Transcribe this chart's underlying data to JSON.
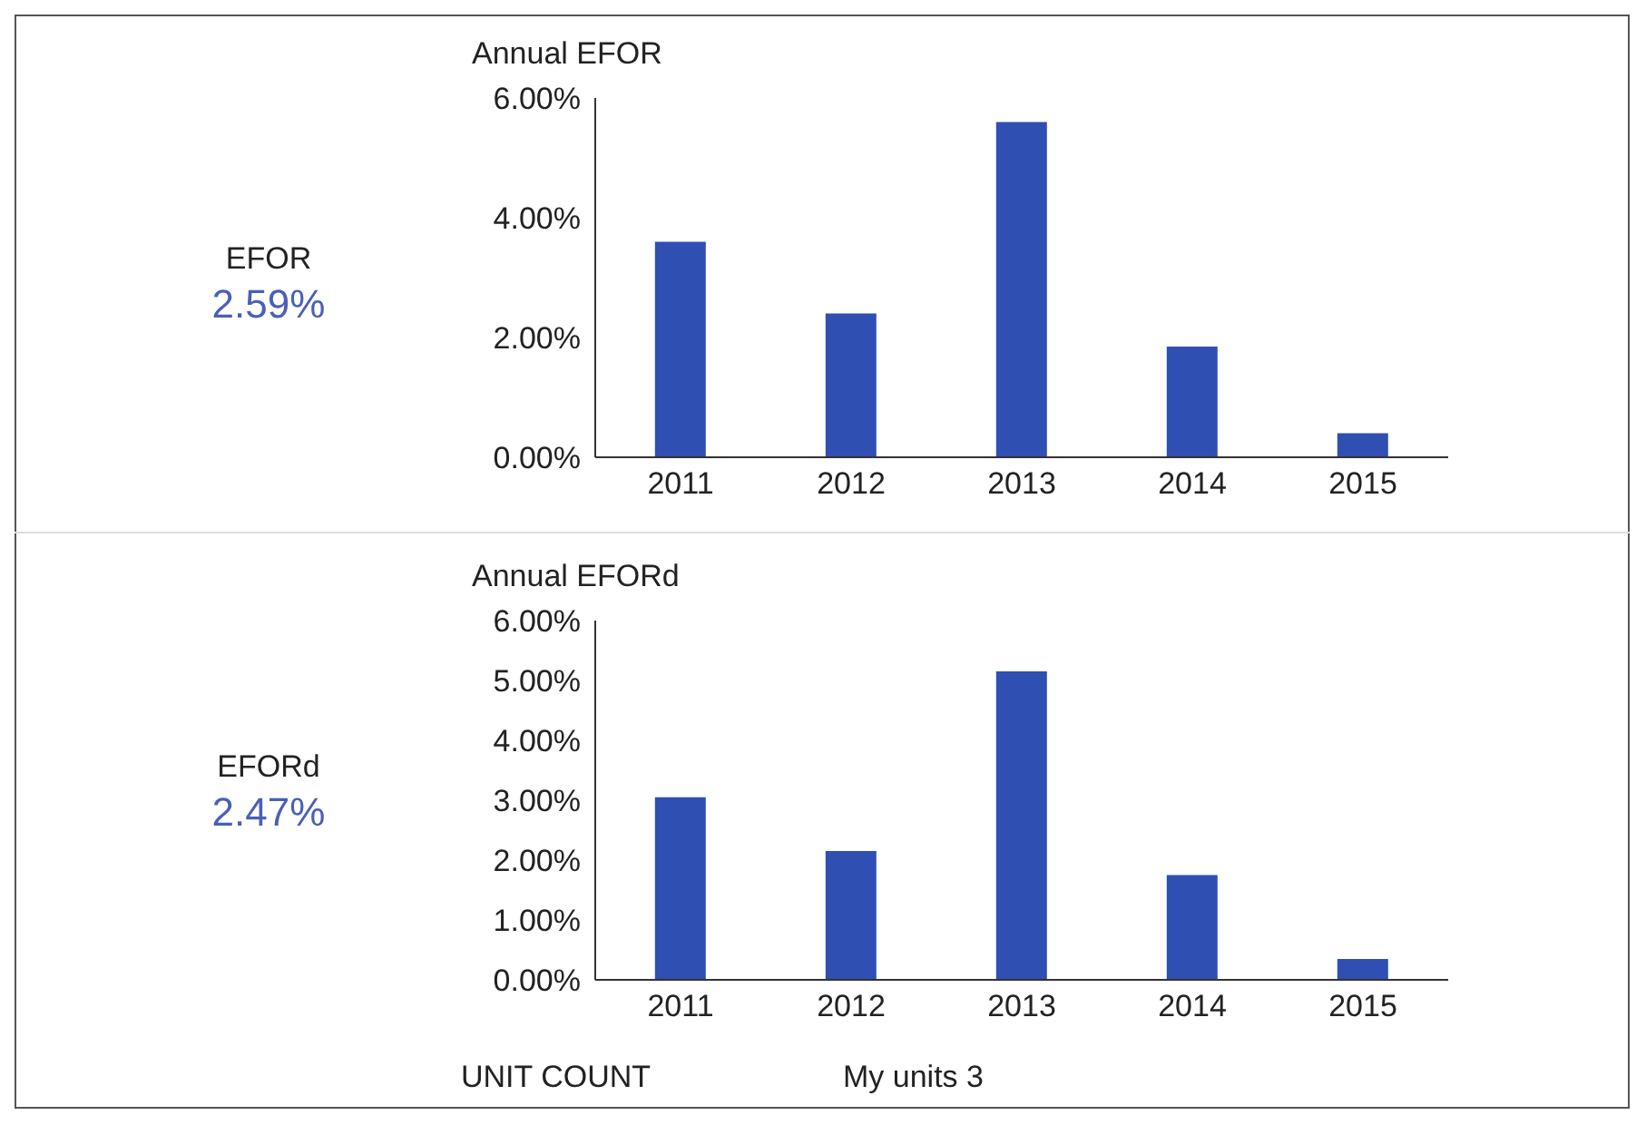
{
  "chart_data": [
    {
      "type": "other",
      "title": "EFOR",
      "annotations": [
        "2.59%"
      ]
    },
    {
      "type": "bar",
      "title": "Annual EFOR",
      "categories": [
        "2011",
        "2012",
        "2013",
        "2014",
        "2015"
      ],
      "values": [
        3.6,
        2.4,
        5.6,
        1.85,
        0.4
      ],
      "color": "#2f4fb3",
      "ylim": [
        0,
        6
      ],
      "yticks": [
        {
          "value": 0,
          "label": "0.00%"
        },
        {
          "value": 2,
          "label": "2.00%"
        },
        {
          "value": 4,
          "label": "4.00%"
        },
        {
          "value": 6,
          "label": "6.00%"
        }
      ],
      "grid": false,
      "legend": false
    },
    {
      "type": "other",
      "title": "EFORd",
      "annotations": [
        "2.47%"
      ]
    },
    {
      "type": "bar",
      "title": "Annual EFORd",
      "categories": [
        "2011",
        "2012",
        "2013",
        "2014",
        "2015"
      ],
      "values": [
        3.05,
        2.15,
        5.15,
        1.75,
        0.35
      ],
      "color": "#2f4fb3",
      "ylim": [
        0,
        6
      ],
      "yticks": [
        {
          "value": 0,
          "label": "0.00%"
        },
        {
          "value": 1,
          "label": "1.00%"
        },
        {
          "value": 2,
          "label": "2.00%"
        },
        {
          "value": 3,
          "label": "3.00%"
        },
        {
          "value": 4,
          "label": "4.00%"
        },
        {
          "value": 5,
          "label": "5.00%"
        },
        {
          "value": 6,
          "label": "6.00%"
        }
      ],
      "grid": false,
      "legend": false
    },
    {
      "type": "other",
      "title": "UNIT COUNT",
      "annotations": [
        "My units 3"
      ]
    }
  ]
}
